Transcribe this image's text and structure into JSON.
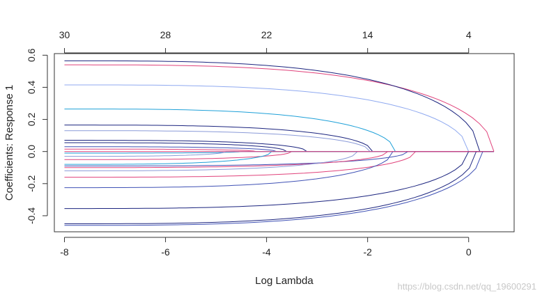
{
  "chart_data": {
    "type": "line",
    "title": "",
    "xlabel": "Log Lambda",
    "ylabel": "Coefficients: Response 1",
    "xlim": [
      -8.2,
      0.9
    ],
    "ylim": [
      -0.5,
      0.61
    ],
    "x_ticks": [
      -8,
      -6,
      -4,
      -2,
      0
    ],
    "x_tick_labels": [
      "-8",
      "-6",
      "-4",
      "-2",
      "0"
    ],
    "y_ticks": [
      -0.4,
      -0.2,
      0.0,
      0.2,
      0.4,
      0.6
    ],
    "y_tick_labels": [
      "-0.4",
      "-0.2",
      "0.0",
      "0.2",
      "0.4",
      "0.6"
    ],
    "top_ticks": [
      -8,
      -6,
      -4,
      -2,
      0
    ],
    "top_tick_labels": [
      "30",
      "28",
      "22",
      "14",
      "4"
    ],
    "grid": false,
    "x_start": -8,
    "series": [
      {
        "color": "#e0417a",
        "values_start": 0.54,
        "zero_at": 0.5
      },
      {
        "color": "#1a237e",
        "values_start": 0.565,
        "zero_at": 0.22
      },
      {
        "color": "#8fa9f0",
        "values_start": 0.415,
        "zero_at": 0.0
      },
      {
        "color": "#1ea0d8",
        "values_start": 0.265,
        "zero_at": -1.45
      },
      {
        "color": "#1a237e",
        "values_start": 0.165,
        "zero_at": -1.9
      },
      {
        "color": "#8a9ad8",
        "values_start": 0.13,
        "zero_at": -1.95
      },
      {
        "color": "#1a237e",
        "values_start": 0.07,
        "zero_at": -3.2
      },
      {
        "color": "#1a237e",
        "values_start": 0.055,
        "zero_at": -3.6
      },
      {
        "color": "#3f51b5",
        "values_start": 0.03,
        "zero_at": -3.8
      },
      {
        "color": "#e0417a",
        "values_start": 0.015,
        "zero_at": -4.2
      },
      {
        "color": "#1ea0d8",
        "values_start": -0.01,
        "zero_at": -4.5
      },
      {
        "color": "#8a9ad8",
        "values_start": -0.03,
        "zero_at": -4.8
      },
      {
        "color": "#e0417a",
        "values_start": -0.05,
        "zero_at": -3.5
      },
      {
        "color": "#1ea0d8",
        "values_start": -0.08,
        "zero_at": -3.9
      },
      {
        "color": "#3f51b5",
        "values_start": -0.09,
        "zero_at": -1.2
      },
      {
        "color": "#e0417a",
        "values_start": -0.1,
        "zero_at": -1.6
      },
      {
        "color": "#8a9ad8",
        "values_start": -0.12,
        "zero_at": -2.2
      },
      {
        "color": "#e0417a",
        "values_start": -0.16,
        "zero_at": -1.05
      },
      {
        "color": "#3f51b5",
        "values_start": -0.225,
        "zero_at": -1.5
      },
      {
        "color": "#1a237e",
        "values_start": -0.355,
        "zero_at": 0.0
      },
      {
        "color": "#1a237e",
        "values_start": -0.45,
        "zero_at": 0.15
      },
      {
        "color": "#3f51b5",
        "values_start": -0.46,
        "zero_at": 0.28
      },
      {
        "color": "#e0417a",
        "values_start": 0.0,
        "zero_at": 0.5
      }
    ]
  },
  "watermark": "https://blog.csdn.net/qq_19600291"
}
